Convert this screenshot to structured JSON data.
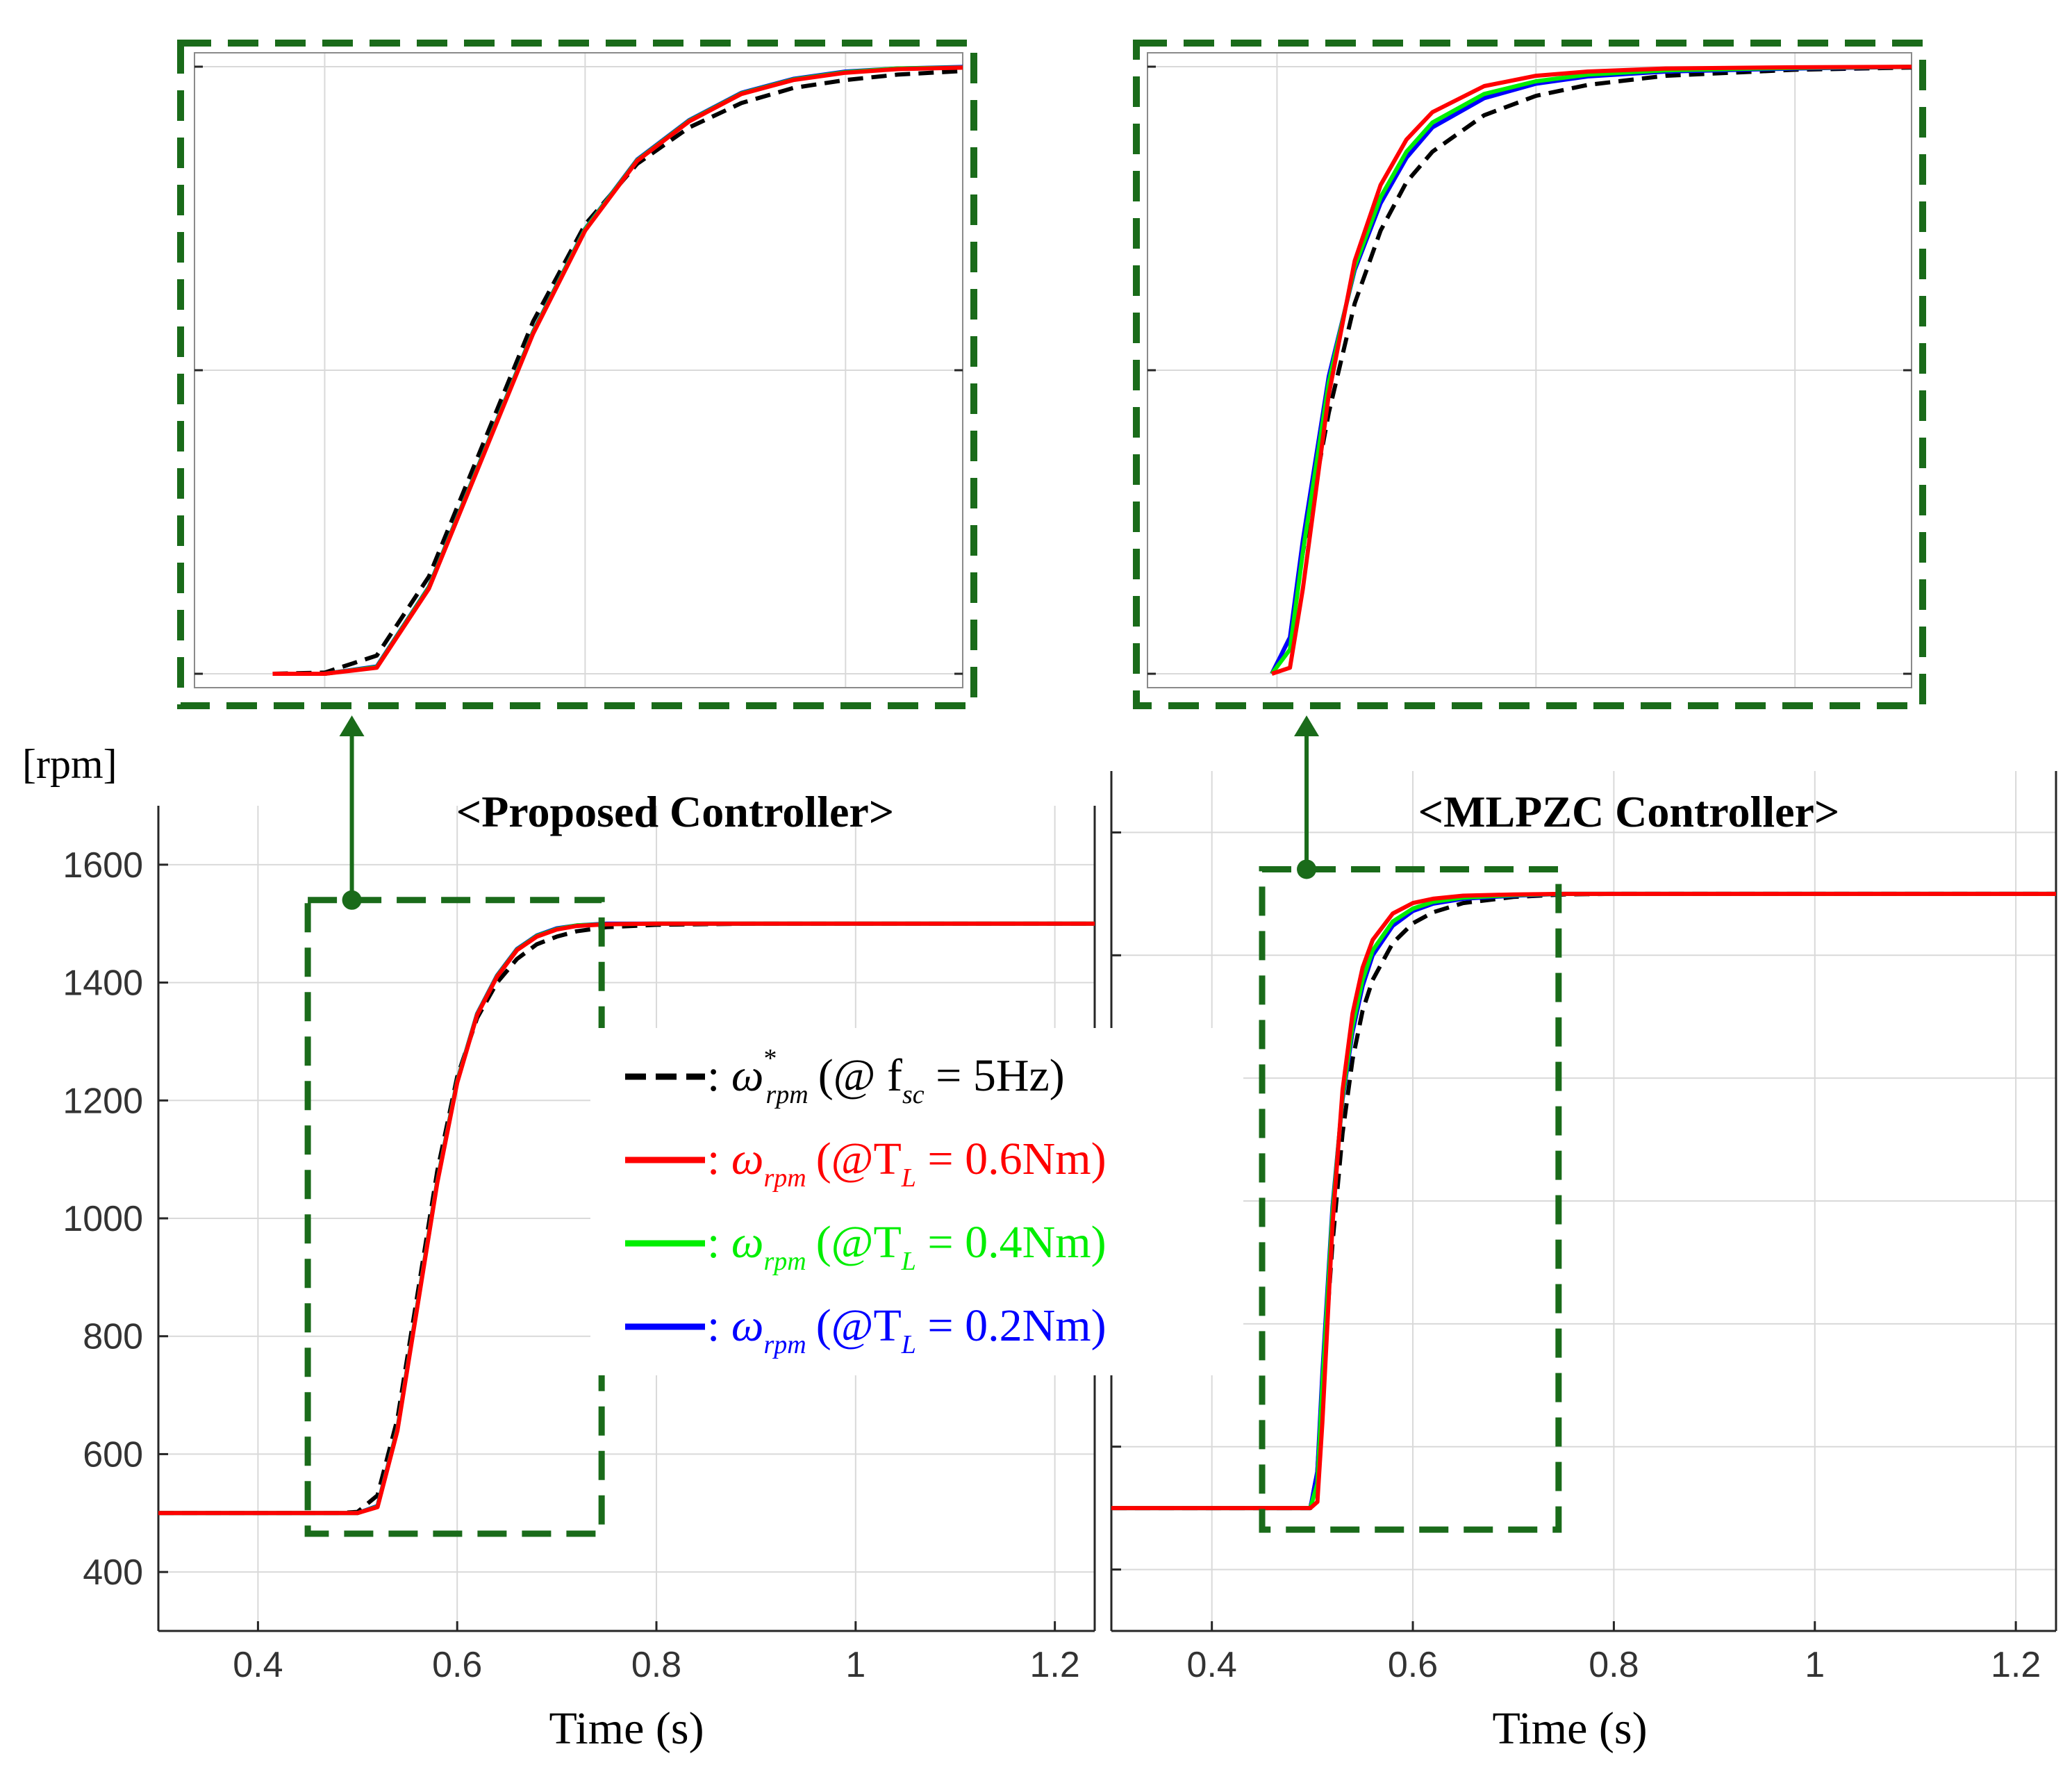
{
  "units_label": "[rpm]",
  "colors": {
    "reference": "#000000",
    "tl_06": "#ff0000",
    "tl_04": "#00ee00",
    "tl_02": "#0000ff",
    "box": "#1a6b1a",
    "grid": "#d9d9d9"
  },
  "legend": [
    {
      "colon": ":",
      "sym": "ω",
      "sup": "*",
      "sub": "rpm",
      "cond": "(@ f",
      "condsub": "sc",
      "rest": " = 5Hz)",
      "color": "#000000",
      "dash": true
    },
    {
      "colon": ":",
      "sym": "ω",
      "sup": "",
      "sub": "rpm",
      "cond": "(@T",
      "condsub": "L",
      "rest": " = 0.6Nm)",
      "color": "#ff0000",
      "dash": false
    },
    {
      "colon": ":",
      "sym": "ω",
      "sup": "",
      "sub": "rpm",
      "cond": "(@T",
      "condsub": "L",
      "rest": " = 0.4Nm)",
      "color": "#00ee00",
      "dash": false
    },
    {
      "colon": ":",
      "sym": "ω",
      "sup": "",
      "sub": "rpm",
      "cond": "(@T",
      "condsub": "L",
      "rest": " = 0.2Nm)",
      "color": "#0000ff",
      "dash": false
    }
  ],
  "chart_data": [
    {
      "type": "line",
      "title": "<Proposed Controller>",
      "xlabel": "Time (s)",
      "ylabel": "[rpm]",
      "xlim": [
        0.3,
        1.24
      ],
      "ylim": [
        300,
        1700
      ],
      "xticks": [
        0.4,
        0.6,
        0.8,
        1,
        1.2
      ],
      "xtick_labels": [
        "0.4",
        "0.6",
        "0.8",
        "1",
        "1.2"
      ],
      "yticks": [
        400,
        600,
        800,
        1000,
        1200,
        1400,
        1600
      ],
      "ytick_labels": [
        "400",
        "600",
        "800",
        "1000",
        "1200",
        "1400",
        "1600"
      ],
      "grid": true,
      "zoom_window": {
        "x": [
          0.45,
          0.745
        ],
        "y": [
          465,
          1540
        ]
      },
      "x": [
        0.3,
        0.48,
        0.5,
        0.52,
        0.54,
        0.56,
        0.58,
        0.6,
        0.62,
        0.64,
        0.66,
        0.68,
        0.7,
        0.72,
        0.75,
        0.8,
        0.9,
        1.0,
        1.1,
        1.24
      ],
      "series": [
        {
          "id": "ref",
          "values": [
            500,
            500,
            502,
            530,
            660,
            870,
            1080,
            1240,
            1340,
            1400,
            1440,
            1465,
            1478,
            1487,
            1494,
            1498,
            1500,
            1500,
            1500,
            1500
          ]
        },
        {
          "id": "tl06",
          "values": [
            500,
            500,
            500,
            510,
            640,
            850,
            1060,
            1230,
            1345,
            1410,
            1455,
            1478,
            1490,
            1496,
            1499,
            1500,
            1500,
            1500,
            1500,
            1500
          ]
        },
        {
          "id": "tl04",
          "values": [
            500,
            500,
            500,
            511,
            642,
            852,
            1062,
            1232,
            1346,
            1411,
            1456,
            1479,
            1491,
            1497,
            1499,
            1500,
            1500,
            1500,
            1500,
            1500
          ]
        },
        {
          "id": "tl02",
          "values": [
            500,
            500,
            500,
            512,
            643,
            853,
            1063,
            1233,
            1347,
            1412,
            1457,
            1480,
            1492,
            1497,
            1500,
            1500,
            1500,
            1500,
            1500,
            1500
          ]
        }
      ]
    },
    {
      "type": "line",
      "title": "<MLPZC Controller>",
      "xlabel": "Time (s)",
      "ylabel": "",
      "xlim": [
        0.3,
        1.24
      ],
      "ylim": [
        300,
        1700
      ],
      "xticks": [
        0.4,
        0.6,
        0.8,
        1,
        1.2
      ],
      "xtick_labels": [
        "0.4",
        "0.6",
        "0.8",
        "1",
        "1.2"
      ],
      "yticks": [
        400,
        600,
        800,
        1000,
        1200,
        1400,
        1600
      ],
      "ytick_labels": [],
      "grid": true,
      "zoom_window": {
        "x": [
          0.45,
          0.745
        ],
        "y": [
          465,
          1540
        ]
      },
      "x": [
        0.3,
        0.498,
        0.505,
        0.51,
        0.52,
        0.53,
        0.54,
        0.55,
        0.56,
        0.58,
        0.6,
        0.62,
        0.65,
        0.7,
        0.75,
        0.8,
        0.9,
        1.0,
        1.1,
        1.24
      ],
      "series": [
        {
          "id": "ref",
          "values": [
            500,
            500,
            560,
            700,
            930,
            1110,
            1230,
            1310,
            1360,
            1420,
            1452,
            1470,
            1485,
            1495,
            1499,
            1500,
            1500,
            1500,
            1500,
            1500
          ]
        },
        {
          "id": "tl06",
          "values": [
            500,
            500,
            510,
            640,
            960,
            1180,
            1305,
            1380,
            1425,
            1468,
            1485,
            1492,
            1497,
            1499,
            1500,
            1500,
            1500,
            1500,
            1500,
            1500
          ]
        },
        {
          "id": "tl04",
          "values": [
            500,
            500,
            540,
            700,
            980,
            1170,
            1285,
            1360,
            1408,
            1455,
            1476,
            1487,
            1494,
            1498,
            1500,
            1500,
            1500,
            1500,
            1500,
            1500
          ]
        },
        {
          "id": "tl02",
          "values": [
            500,
            500,
            560,
            720,
            990,
            1165,
            1275,
            1350,
            1400,
            1448,
            1472,
            1484,
            1492,
            1497,
            1500,
            1500,
            1500,
            1500,
            1500,
            1500
          ]
        }
      ]
    }
  ]
}
